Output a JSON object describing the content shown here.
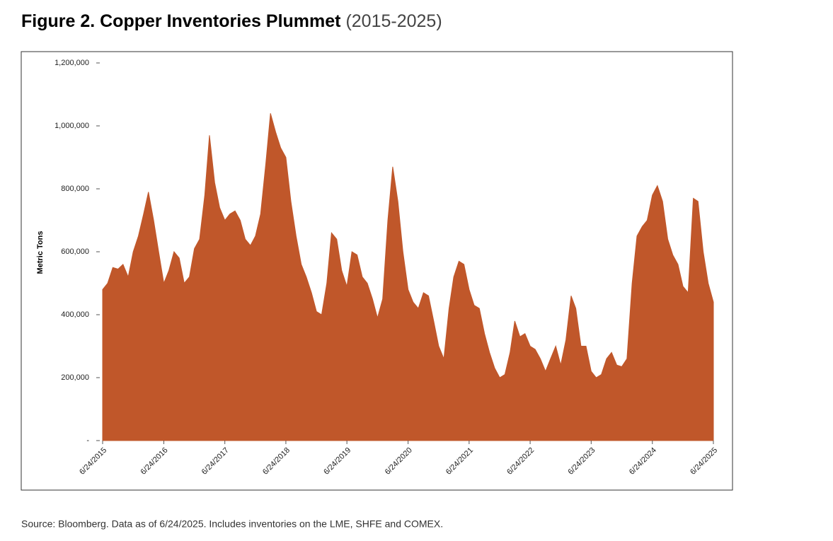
{
  "chart_data": {
    "type": "area",
    "title": "Figure 2. Copper Inventories Plummet",
    "subtitle": "(2015-2025)",
    "y_label": "Metric Tons",
    "source": "Source: Bloomberg. Data as of 6/24/2025. Includes inventories on the LME, SHFE and COMEX.",
    "color": "#c0572a",
    "x": [
      "6/24/2015",
      "7/24/2015",
      "8/24/2015",
      "9/24/2015",
      "10/24/2015",
      "11/24/2015",
      "12/24/2015",
      "1/24/2016",
      "2/24/2016",
      "3/24/2016",
      "4/24/2016",
      "5/24/2016",
      "6/24/2016",
      "7/24/2016",
      "8/24/2016",
      "9/24/2016",
      "10/24/2016",
      "11/24/2016",
      "12/24/2016",
      "1/24/2017",
      "2/24/2017",
      "3/24/2017",
      "4/24/2017",
      "5/24/2017",
      "6/24/2017",
      "7/24/2017",
      "8/24/2017",
      "9/24/2017",
      "10/24/2017",
      "11/24/2017",
      "12/24/2017",
      "1/24/2018",
      "2/24/2018",
      "3/24/2018",
      "4/24/2018",
      "5/24/2018",
      "6/24/2018",
      "7/24/2018",
      "8/24/2018",
      "9/24/2018",
      "10/24/2018",
      "11/24/2018",
      "12/24/2018",
      "1/24/2019",
      "2/24/2019",
      "3/24/2019",
      "4/24/2019",
      "5/24/2019",
      "6/24/2019",
      "7/24/2019",
      "8/24/2019",
      "9/24/2019",
      "10/24/2019",
      "11/24/2019",
      "12/24/2019",
      "1/24/2020",
      "2/24/2020",
      "3/24/2020",
      "4/24/2020",
      "5/24/2020",
      "6/24/2020",
      "7/24/2020",
      "8/24/2020",
      "9/24/2020",
      "10/24/2020",
      "11/24/2020",
      "12/24/2020",
      "1/24/2021",
      "2/24/2021",
      "3/24/2021",
      "4/24/2021",
      "5/24/2021",
      "6/24/2021",
      "7/24/2021",
      "8/24/2021",
      "9/24/2021",
      "10/24/2021",
      "11/24/2021",
      "12/24/2021",
      "1/24/2022",
      "2/24/2022",
      "3/24/2022",
      "4/24/2022",
      "5/24/2022",
      "6/24/2022",
      "7/24/2022",
      "8/24/2022",
      "9/24/2022",
      "10/24/2022",
      "11/24/2022",
      "12/24/2022",
      "1/24/2023",
      "2/24/2023",
      "3/24/2023",
      "4/24/2023",
      "5/24/2023",
      "6/24/2023",
      "7/24/2023",
      "8/24/2023",
      "9/24/2023",
      "10/24/2023",
      "11/24/2023",
      "12/24/2023",
      "1/24/2024",
      "2/24/2024",
      "3/24/2024",
      "4/24/2024",
      "5/24/2024",
      "6/24/2024",
      "7/24/2024",
      "8/24/2024",
      "9/24/2024",
      "10/24/2024",
      "11/24/2024",
      "12/24/2024",
      "1/24/2025",
      "2/24/2025",
      "3/24/2025",
      "4/24/2025",
      "5/24/2025",
      "6/24/2025"
    ],
    "values": [
      480000,
      500000,
      550000,
      545000,
      560000,
      520000,
      600000,
      650000,
      720000,
      790000,
      700000,
      600000,
      500000,
      540000,
      600000,
      580000,
      500000,
      520000,
      610000,
      640000,
      780000,
      970000,
      820000,
      740000,
      700000,
      720000,
      730000,
      700000,
      640000,
      620000,
      650000,
      720000,
      880000,
      1040000,
      980000,
      930000,
      900000,
      760000,
      650000,
      560000,
      520000,
      470000,
      410000,
      400000,
      500000,
      660000,
      640000,
      540000,
      490000,
      600000,
      590000,
      520000,
      500000,
      450000,
      390000,
      450000,
      700000,
      870000,
      760000,
      600000,
      480000,
      440000,
      420000,
      470000,
      460000,
      380000,
      300000,
      260000,
      420000,
      520000,
      570000,
      560000,
      480000,
      430000,
      420000,
      340000,
      280000,
      230000,
      200000,
      210000,
      280000,
      380000,
      330000,
      340000,
      300000,
      290000,
      260000,
      220000,
      260000,
      300000,
      240000,
      320000,
      460000,
      420000,
      300000,
      300000,
      220000,
      200000,
      210000,
      260000,
      280000,
      240000,
      235000,
      260000,
      500000,
      650000,
      680000,
      700000,
      780000,
      810000,
      760000,
      640000,
      590000,
      560000,
      490000,
      470000,
      770000,
      760000,
      600000,
      500000,
      440000
    ],
    "xlim": [
      "6/24/2015",
      "6/24/2025"
    ],
    "xticks": [
      "6/24/2015",
      "6/24/2016",
      "6/24/2017",
      "6/24/2018",
      "6/24/2019",
      "6/24/2020",
      "6/24/2021",
      "6/24/2022",
      "6/24/2023",
      "6/24/2024",
      "6/24/2025"
    ],
    "ylim": [
      0,
      1200000
    ],
    "yticks": [
      {
        "value": 0,
        "label": "-"
      },
      {
        "value": 200000,
        "label": "200,000"
      },
      {
        "value": 400000,
        "label": "400,000"
      },
      {
        "value": 600000,
        "label": "600,000"
      },
      {
        "value": 800000,
        "label": "800,000"
      },
      {
        "value": 1000000,
        "label": "1,000,000"
      },
      {
        "value": 1200000,
        "label": "1,200,000"
      }
    ]
  }
}
